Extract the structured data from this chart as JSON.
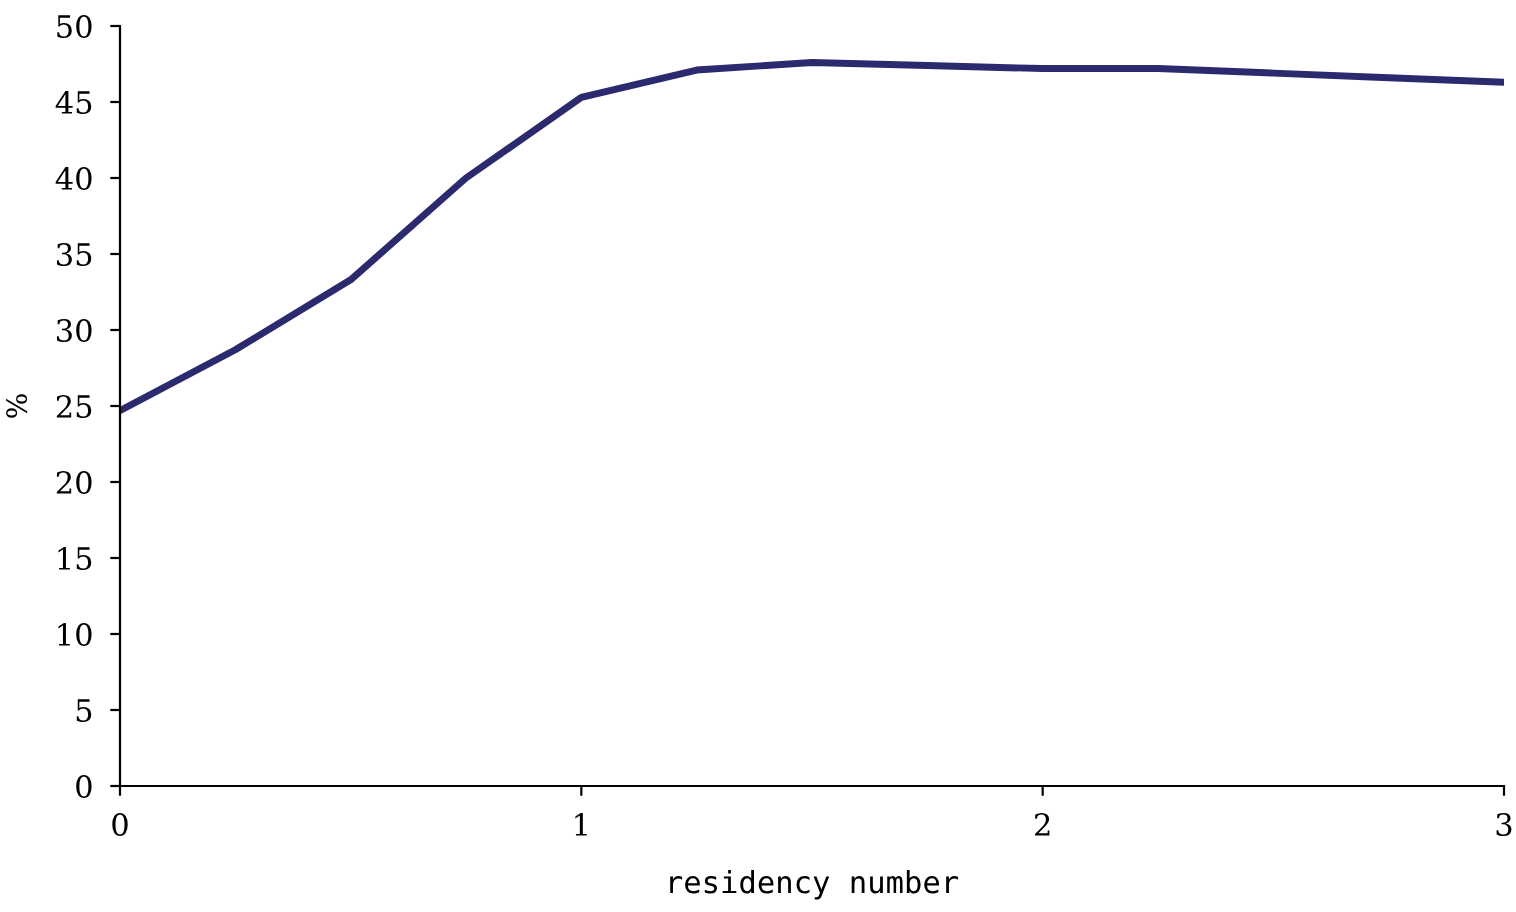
{
  "chart_data": {
    "type": "line",
    "xlabel": "residency number",
    "ylabel": "%",
    "x": [
      0,
      0.25,
      0.5,
      0.75,
      1,
      1.25,
      1.5,
      1.75,
      2,
      2.25,
      2.5,
      2.75,
      3
    ],
    "series": [
      {
        "color": "#2b2a6e",
        "values": [
          24.7,
          28.7,
          33.3,
          40.0,
          45.3,
          47.1,
          47.6,
          47.4,
          47.2,
          47.2,
          46.9,
          46.6,
          46.3
        ]
      }
    ],
    "xlim": [
      0,
      3
    ],
    "ylim": [
      0,
      50
    ],
    "xticks": [
      0,
      1,
      2,
      3
    ],
    "yticks": [
      0,
      5,
      10,
      15,
      20,
      25,
      30,
      35,
      40,
      45,
      50
    ],
    "grid": false,
    "legend": false,
    "marker": "none",
    "line_style": "solid"
  }
}
